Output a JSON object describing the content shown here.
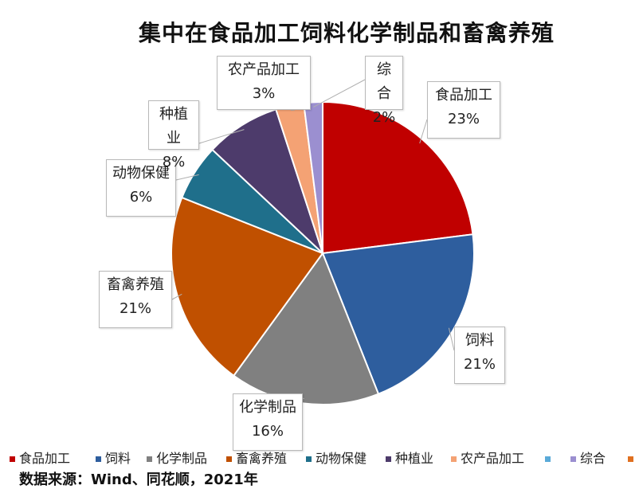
{
  "chart_data": {
    "type": "pie",
    "title": "集中在食品加工饲料化学制品和畜禽养殖",
    "categories": [
      "食品加工",
      "饲料",
      "化学制品",
      "畜禽养殖",
      "动物保健",
      "种植业",
      "农产品加工",
      "综合"
    ],
    "values": [
      23,
      21,
      16,
      21,
      6,
      8,
      3,
      2
    ],
    "value_labels": [
      "23%",
      "21%",
      "16%",
      "21%",
      "6%",
      "8%",
      "3%",
      "2%"
    ],
    "colors": [
      "#c00000",
      "#2e5e9e",
      "#808080",
      "#c05000",
      "#1f6f8b",
      "#4d3b6b",
      "#f4a274",
      "#9b8fd0"
    ],
    "legend_placement": "bottom",
    "legend_labels": [
      "食品加工",
      "饲料",
      "化学制品",
      "畜禽养殖",
      "动物保健",
      "种植业",
      "农产品加工",
      "",
      "综合",
      ""
    ],
    "legend_colors": [
      "#c00000",
      "#2e5e9e",
      "#808080",
      "#c05000",
      "#1f6f8b",
      "#4d3b6b",
      "#f4a274",
      "#5aaad8",
      "#9b8fd0",
      "#e07020"
    ]
  },
  "source": "数据来源：Wind、同花顺，2021年"
}
